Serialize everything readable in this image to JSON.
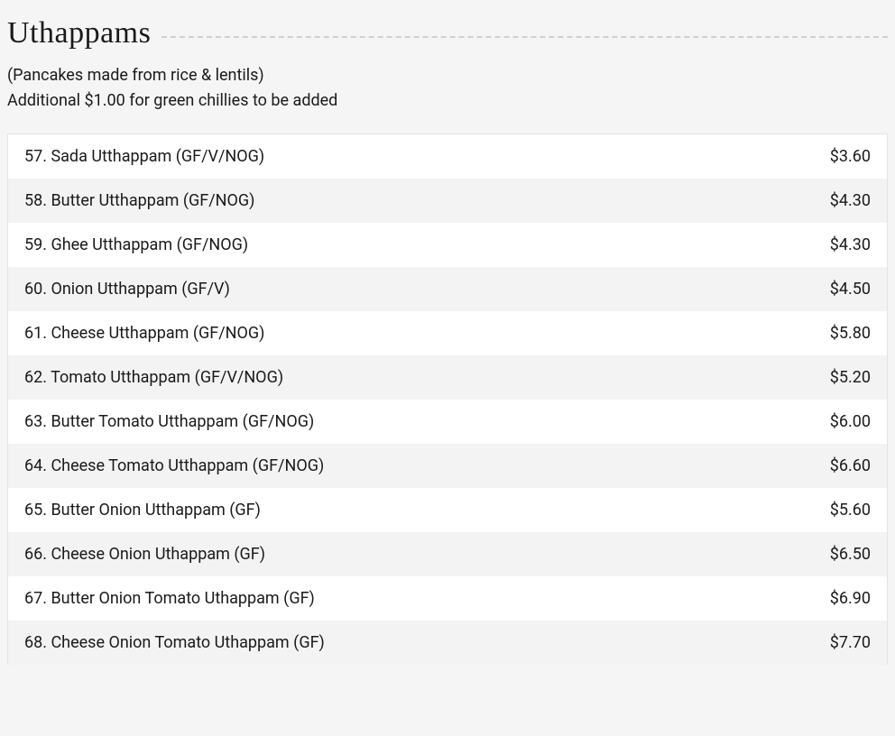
{
  "section": {
    "title": "Uthappams",
    "description_line1": "(Pancakes made from rice & lentils)",
    "description_line2": "Additional $1.00 for green chillies to be added"
  },
  "menu": {
    "items": [
      {
        "name": "57. Sada Utthappam (GF/V/NOG)",
        "price": "$3.60"
      },
      {
        "name": "58. Butter Utthappam (GF/NOG)",
        "price": "$4.30"
      },
      {
        "name": "59. Ghee Utthappam (GF/NOG)",
        "price": "$4.30"
      },
      {
        "name": "60. Onion Utthappam (GF/V)",
        "price": "$4.50"
      },
      {
        "name": "61. Cheese Utthappam (GF/NOG)",
        "price": "$5.80"
      },
      {
        "name": "62. Tomato Utthappam (GF/V/NOG)",
        "price": "$5.20"
      },
      {
        "name": "63. Butter Tomato Utthappam (GF/NOG)",
        "price": "$6.00"
      },
      {
        "name": "64. Cheese Tomato Utthappam (GF/NOG)",
        "price": "$6.60"
      },
      {
        "name": "65. Butter Onion Utthappam (GF)",
        "price": "$5.60"
      },
      {
        "name": "66. Cheese Onion Uthappam (GF)",
        "price": "$6.50"
      },
      {
        "name": "67. Butter Onion Tomato Uthappam (GF)",
        "price": "$6.90"
      },
      {
        "name": "68. Cheese Onion Tomato Uthappam (GF)",
        "price": "$7.70"
      }
    ],
    "row_bg_odd": "#ffffff",
    "row_bg_even": "#f3f3f3",
    "border_color": "#e3e3e3",
    "text_color": "#1a1a1a",
    "page_bg": "#f5f5f5",
    "font_size_row": 18,
    "title_font_size": 34
  }
}
